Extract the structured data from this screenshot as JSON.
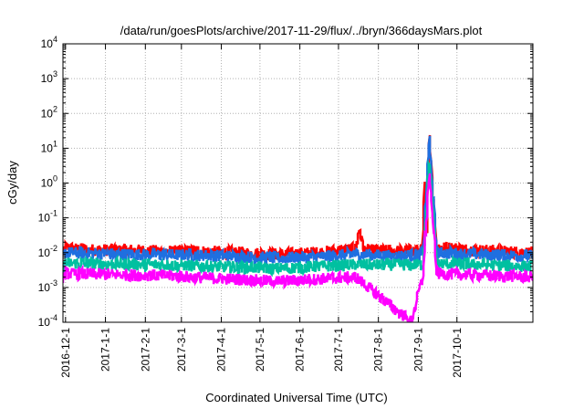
{
  "chart_data": {
    "type": "line",
    "title": "/data/run/goesPlots/archive/2017-11-29/flux/../bryn/366daysMars.plot",
    "xlabel": "Coordinated Universal Time (UTC)",
    "ylabel": "cGy/day",
    "yscale": "log",
    "ylim": [
      0.0001,
      10000
    ],
    "xlim": [
      "2016-11-29",
      "2017-11-29"
    ],
    "grid": true,
    "legend": "none",
    "x_ticks": [
      "2016-12-1",
      "2017-1-1",
      "2017-2-1",
      "2017-3-1",
      "2017-4-1",
      "2017-5-1",
      "2017-6-1",
      "2017-7-1",
      "2017-8-1",
      "2017-9-1",
      "2017-10-1"
    ],
    "y_ticks": [
      {
        "base": "10",
        "exp": "-4",
        "value": 0.0001
      },
      {
        "base": "10",
        "exp": "-3",
        "value": 0.001
      },
      {
        "base": "10",
        "exp": "-2",
        "value": 0.01
      },
      {
        "base": "10",
        "exp": "-1",
        "value": 0.1
      },
      {
        "base": "10",
        "exp": "0",
        "value": 1
      },
      {
        "base": "10",
        "exp": "1",
        "value": 10
      },
      {
        "base": "10",
        "exp": "2",
        "value": 100
      },
      {
        "base": "10",
        "exp": "3",
        "value": 1000
      },
      {
        "base": "10",
        "exp": "4",
        "value": 10000
      }
    ],
    "series": [
      {
        "color": "#ff0000",
        "values": [
          [
            "2016-12-01",
            0.014
          ],
          [
            "2016-12-20",
            0.012
          ],
          [
            "2017-01-15",
            0.012
          ],
          [
            "2017-02-15",
            0.011
          ],
          [
            "2017-03-15",
            0.011
          ],
          [
            "2017-04-15",
            0.01
          ],
          [
            "2017-05-15",
            0.009
          ],
          [
            "2017-06-15",
            0.01
          ],
          [
            "2017-07-15",
            0.013
          ],
          [
            "2017-07-18",
            0.05
          ],
          [
            "2017-07-21",
            0.012
          ],
          [
            "2017-08-15",
            0.011
          ],
          [
            "2017-09-05",
            0.012
          ],
          [
            "2017-09-06",
            1.0
          ],
          [
            "2017-09-08",
            0.02
          ],
          [
            "2017-09-10",
            40
          ],
          [
            "2017-09-13",
            0.5
          ],
          [
            "2017-09-16",
            0.015
          ],
          [
            "2017-10-15",
            0.012
          ],
          [
            "2017-11-29",
            0.01
          ]
        ]
      },
      {
        "color": "#1f6fe0",
        "values": [
          [
            "2016-12-01",
            0.01
          ],
          [
            "2017-01-15",
            0.009
          ],
          [
            "2017-03-15",
            0.0085
          ],
          [
            "2017-05-15",
            0.007
          ],
          [
            "2017-06-15",
            0.0075
          ],
          [
            "2017-07-15",
            0.009
          ],
          [
            "2017-08-15",
            0.008
          ],
          [
            "2017-09-05",
            0.009
          ],
          [
            "2017-09-10",
            20
          ],
          [
            "2017-09-16",
            0.01
          ],
          [
            "2017-10-15",
            0.009
          ],
          [
            "2017-11-29",
            0.008
          ]
        ]
      },
      {
        "color": "#00c0a0",
        "values": [
          [
            "2016-12-01",
            0.005
          ],
          [
            "2017-02-15",
            0.0045
          ],
          [
            "2017-05-15",
            0.0035
          ],
          [
            "2017-07-15",
            0.0045
          ],
          [
            "2017-09-05",
            0.0045
          ],
          [
            "2017-09-10",
            5
          ],
          [
            "2017-09-16",
            0.005
          ],
          [
            "2017-11-29",
            0.004
          ]
        ]
      },
      {
        "color": "#ff00ff",
        "values": [
          [
            "2016-12-01",
            0.0025
          ],
          [
            "2017-02-15",
            0.0022
          ],
          [
            "2017-05-15",
            0.0015
          ],
          [
            "2017-07-15",
            0.002
          ],
          [
            "2017-08-27",
            0.0001
          ],
          [
            "2017-09-05",
            0.002
          ],
          [
            "2017-09-10",
            2
          ],
          [
            "2017-09-16",
            0.0025
          ],
          [
            "2017-11-29",
            0.002
          ]
        ]
      }
    ]
  }
}
